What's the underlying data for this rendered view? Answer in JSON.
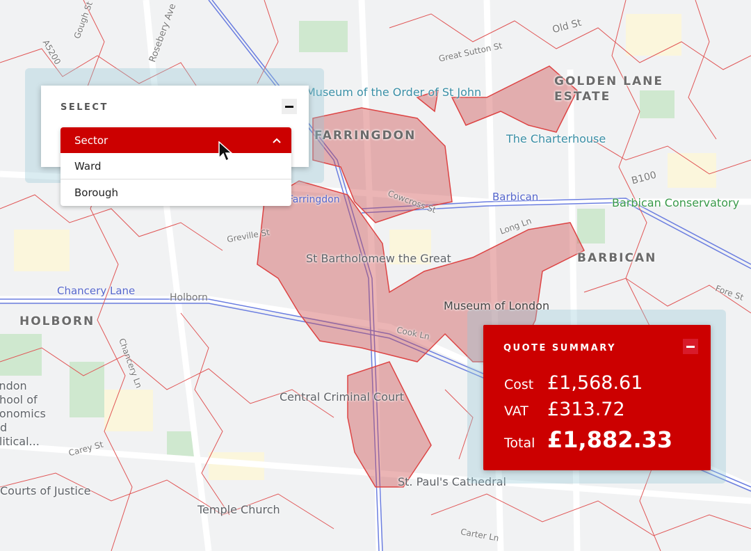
{
  "map": {
    "accent_color": "#cc0000",
    "labels": {
      "museum_order": "Museum of the Order of St John",
      "farringdon_area": "FARRINGDON",
      "golden_lane": "GOLDEN LANE ESTATE",
      "charterhouse": "The Charterhouse",
      "barbican_station": "Barbican",
      "barbican_conservatory": "Barbican Conservatory",
      "barbican_area": "BARBICAN",
      "st_barts": "St Bartholomew the Great",
      "museum_london": "Museum of London",
      "chancery_lane": "Chancery Lane",
      "holborn_road": "Holborn",
      "holborn_area": "HOLBORN",
      "criminal_court": "Central Criminal Court",
      "st_pauls": "St. Paul's Cathedral",
      "temple_church": "Temple Church",
      "courts_justice": "Courts of Justice",
      "farringdon_station": "Farringdon",
      "cowcross": "Cowcross St",
      "long_ln": "Long Ln",
      "cook_ln": "Cook Ln",
      "greville": "Greville St",
      "great_sutton": "Great Sutton St",
      "old_st": "Old St",
      "b100": "B100",
      "fore_st": "Fore St",
      "carey_st": "Carey St",
      "chancery_ln": "Chancery Ln",
      "rosebery": "Rosebery Ave",
      "gough": "Gough St",
      "a5200": "A5200",
      "carter_ln": "Carter Ln",
      "lse": "London School of Economics and Political..."
    }
  },
  "select_panel": {
    "title": "SELECT",
    "minimize_icon": "minus-icon",
    "selected": "Sector",
    "chevron_icon": "chevron-up-icon",
    "options": [
      "Ward",
      "Borough"
    ]
  },
  "quote_summary": {
    "title": "QUOTE SUMMARY",
    "minimize_icon": "minus-icon",
    "cost_label": "Cost",
    "cost": "£1,568.61",
    "vat_label": "VAT",
    "vat": "£313.72",
    "total_label": "Total",
    "total": "£1,882.33"
  }
}
